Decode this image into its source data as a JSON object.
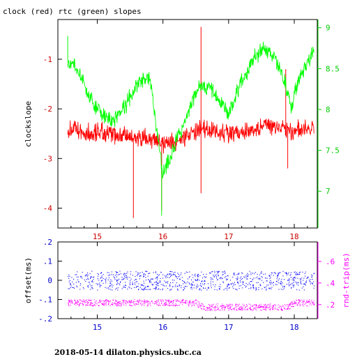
{
  "chart_data": [
    {
      "type": "line",
      "title": "clock (red) rtc (green) slopes",
      "ylabel": "clockslope",
      "xlim": [
        14.4,
        18.35
      ],
      "xticks": [
        15,
        16,
        17,
        18
      ],
      "ylim_left": [
        -4.4,
        -0.2
      ],
      "yticks_left": [
        -1,
        -2,
        -3,
        -4
      ],
      "ylim_right": [
        6.55,
        9.1
      ],
      "yticks_right": [
        9,
        8.5,
        8,
        7.5,
        7
      ],
      "series": [
        {
          "color": "#ff0000",
          "axis": "left",
          "x": [
            14.55,
            14.7,
            14.85,
            15.0,
            15.2,
            15.4,
            15.6,
            15.8,
            16.0,
            16.2,
            16.4,
            16.6,
            16.8,
            17.0,
            17.2,
            17.4,
            17.6,
            17.8,
            18.0,
            18.2,
            18.3
          ],
          "values": [
            -2.4,
            -2.45,
            -2.5,
            -2.45,
            -2.5,
            -2.55,
            -2.6,
            -2.62,
            -2.72,
            -2.65,
            -2.5,
            -2.42,
            -2.45,
            -2.48,
            -2.48,
            -2.42,
            -2.35,
            -2.38,
            -2.45,
            -2.42,
            -2.4
          ],
          "spikes": [
            {
              "x": 15.55,
              "y": -4.2
            },
            {
              "x": 15.98,
              "y": -4.05
            },
            {
              "x": 16.58,
              "y": -0.35
            },
            {
              "x": 16.58,
              "y": -3.7
            },
            {
              "x": 17.87,
              "y": -1.2
            },
            {
              "x": 17.9,
              "y": -3.2
            }
          ]
        },
        {
          "color": "#00ff00",
          "axis": "right",
          "x": [
            14.55,
            14.7,
            14.85,
            15.0,
            15.2,
            15.4,
            15.6,
            15.8,
            16.0,
            16.2,
            16.4,
            16.55,
            16.7,
            16.85,
            17.0,
            17.2,
            17.4,
            17.55,
            17.7,
            17.85,
            17.95,
            18.1,
            18.3
          ],
          "values": [
            8.6,
            8.5,
            8.2,
            8.0,
            7.85,
            8.0,
            8.3,
            8.4,
            7.2,
            7.6,
            8.0,
            8.25,
            8.3,
            8.1,
            7.95,
            8.35,
            8.65,
            8.75,
            8.65,
            8.35,
            8.05,
            8.45,
            8.7
          ],
          "spikes": [
            {
              "x": 15.98,
              "y": 6.7
            },
            {
              "x": 14.55,
              "y": 8.9
            }
          ]
        }
      ]
    },
    {
      "type": "scatter",
      "ylabel_left": "offset(ms)",
      "ylabel_right": "rnd-trip(ms)",
      "xlim": [
        14.4,
        18.35
      ],
      "xticks": [
        15,
        16,
        17,
        18
      ],
      "ylim_left": [
        -0.2,
        0.2
      ],
      "yticks_left": [
        0.2,
        0.1,
        0,
        -0.1,
        -0.2
      ],
      "ylim_right": [
        0.07,
        0.78
      ],
      "yticks_right": [
        0.6,
        0.4,
        0.2
      ],
      "series": [
        {
          "color": "#0000ff",
          "axis": "left",
          "x": [
            14.55,
            15.0,
            15.5,
            16.0,
            16.5,
            16.6,
            17.0,
            17.5,
            17.9,
            18.0,
            18.3
          ],
          "values": [
            0.0,
            0.0,
            0.0,
            0.0,
            0.0,
            0.0,
            0.0,
            0.0,
            0.0,
            0.0,
            0.0
          ]
        },
        {
          "color": "#ff00ff",
          "axis": "right",
          "x": [
            14.55,
            15.0,
            15.5,
            16.0,
            16.5,
            16.6,
            17.0,
            17.5,
            17.9,
            18.0,
            18.3
          ],
          "values": [
            0.22,
            0.22,
            0.22,
            0.22,
            0.22,
            0.18,
            0.18,
            0.18,
            0.18,
            0.22,
            0.22
          ]
        }
      ]
    }
  ],
  "footer": "2018-05-14  dilaton.physics.ubc.ca"
}
